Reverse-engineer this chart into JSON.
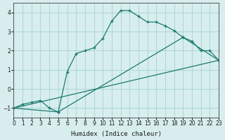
{
  "xlabel": "Humidex (Indice chaleur)",
  "bg_color": "#d8eeee",
  "grid_color": "#b0d8d8",
  "line_color": "#1a7a6e",
  "line1_x": [
    0,
    1,
    2,
    3,
    4,
    5,
    6,
    7,
    8,
    9,
    10,
    11,
    12,
    13,
    14,
    15,
    16,
    17,
    18,
    19,
    20,
    21,
    22,
    23
  ],
  "line1_y": [
    -1.0,
    -0.8,
    -0.7,
    -0.6,
    -1.0,
    -1.2,
    0.9,
    1.85,
    2.0,
    2.15,
    2.65,
    3.55,
    4.1,
    4.1,
    3.8,
    3.5,
    3.5,
    3.3,
    3.05,
    2.7,
    2.5,
    2.0,
    2.0,
    1.5
  ],
  "line2_x": [
    0,
    23
  ],
  "line2_y": [
    -1.0,
    1.5
  ],
  "line3_x": [
    0,
    5,
    19,
    23
  ],
  "line3_y": [
    -1.0,
    -1.2,
    2.7,
    1.5
  ],
  "xlim": [
    0,
    23
  ],
  "ylim": [
    -1.5,
    4.5
  ],
  "yticks": [
    -1,
    0,
    1,
    2,
    3,
    4
  ],
  "xticks": [
    0,
    1,
    2,
    3,
    4,
    5,
    6,
    7,
    8,
    9,
    10,
    11,
    12,
    13,
    14,
    15,
    16,
    17,
    18,
    19,
    20,
    21,
    22,
    23
  ]
}
